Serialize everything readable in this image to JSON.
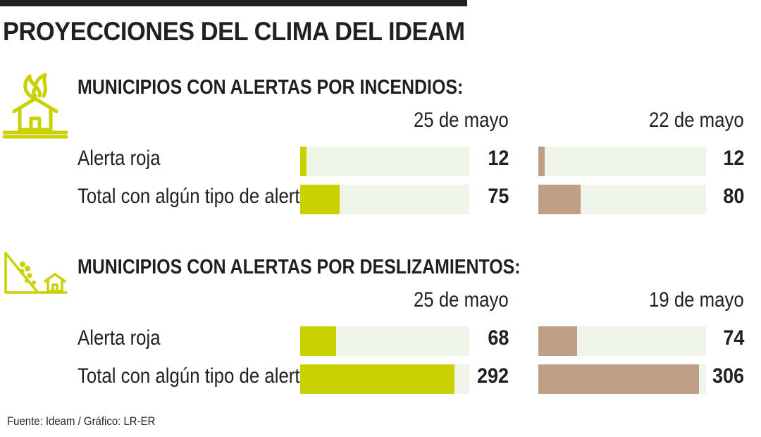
{
  "title": "PROYECCIONES DEL CLIMA DEL IDEAM",
  "colors": {
    "current": "#c9d200",
    "previous": "#bf9f86",
    "track": "#f0f5ea",
    "text": "#231f20"
  },
  "chart_data": [
    {
      "type": "bar",
      "orientation": "horizontal",
      "title": "MUNICIPIOS CON ALERTAS POR INCENDIOS:",
      "icon": "house-fire-icon",
      "categories": [
        "Alerta roja",
        "Total con algún tipo de alerta"
      ],
      "series": [
        {
          "name": "25 de mayo",
          "values": [
            12,
            75
          ]
        },
        {
          "name": "22 de mayo",
          "values": [
            12,
            80
          ]
        }
      ],
      "xlim": [
        0,
        320
      ],
      "grid": false,
      "legend": "none"
    },
    {
      "type": "bar",
      "orientation": "horizontal",
      "title": "MUNICIPIOS CON ALERTAS POR DESLIZAMIENTOS:",
      "icon": "landslide-house-icon",
      "categories": [
        "Alerta roja",
        "Total con algún tipo de alerta"
      ],
      "series": [
        {
          "name": "25 de mayo",
          "values": [
            68,
            292
          ]
        },
        {
          "name": "19 de mayo",
          "values": [
            74,
            306
          ]
        }
      ],
      "xlim": [
        0,
        320
      ],
      "grid": false,
      "legend": "none"
    }
  ],
  "source": "Fuente: Ideam / Gráfico: LR-ER"
}
